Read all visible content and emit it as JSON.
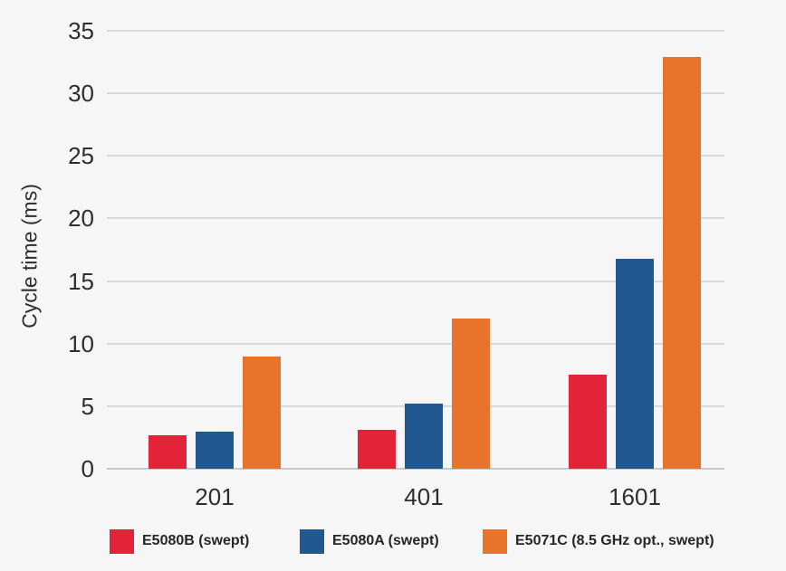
{
  "chart_data": {
    "type": "bar",
    "title": "",
    "xlabel": "",
    "ylabel": "Cycle time (ms)",
    "categories": [
      "201",
      "401",
      "1601"
    ],
    "series": [
      {
        "name": "E5080B (swept)",
        "color": "#e32438",
        "values": [
          2.7,
          3.1,
          7.5
        ]
      },
      {
        "name": "E5080A (swept)",
        "color": "#20588f",
        "values": [
          3.0,
          5.2,
          16.8
        ]
      },
      {
        "name": "E5071C (8.5 GHz opt., swept)",
        "color": "#e8732a",
        "values": [
          9.0,
          12.0,
          32.9
        ]
      }
    ],
    "ylim": [
      0,
      35
    ],
    "ytick_step": 5,
    "ytick_labels": [
      "0",
      "5",
      "10",
      "15",
      "20",
      "25",
      "30",
      "35"
    ],
    "grid": true,
    "legend_position": "bottom"
  },
  "colors": {
    "background": "#f6f6f6",
    "gridline": "#d9d9d9",
    "axis_line": "#c9c9c9",
    "text": "#2e2e2e"
  }
}
